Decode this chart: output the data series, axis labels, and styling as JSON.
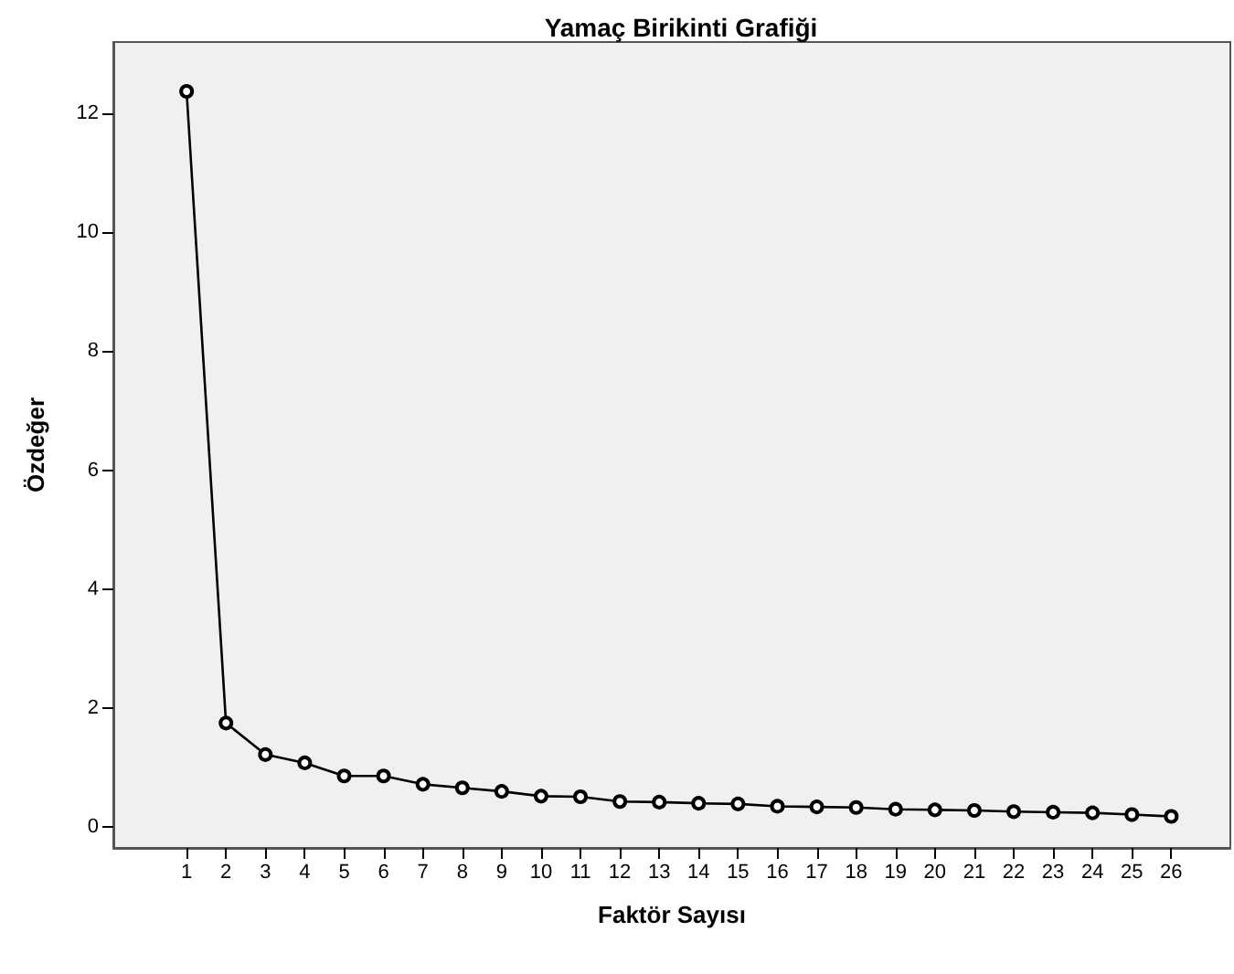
{
  "chart_data": {
    "type": "line",
    "title": "Yamaç Birikinti Grafiği",
    "xlabel": "Faktör Sayısı",
    "ylabel": "Özdeğer",
    "x": [
      1,
      2,
      3,
      4,
      5,
      6,
      7,
      8,
      9,
      10,
      11,
      12,
      13,
      14,
      15,
      16,
      17,
      18,
      19,
      20,
      21,
      22,
      23,
      24,
      25,
      26
    ],
    "series": [
      {
        "color": "#000000",
        "values": [
          12.37,
          1.75,
          1.22,
          1.08,
          0.86,
          0.86,
          0.72,
          0.66,
          0.6,
          0.52,
          0.51,
          0.43,
          0.42,
          0.4,
          0.39,
          0.35,
          0.34,
          0.33,
          0.3,
          0.29,
          0.28,
          0.26,
          0.25,
          0.24,
          0.21,
          0.18
        ]
      }
    ],
    "xlim": [
      -0.86,
      27.5
    ],
    "xticks": [
      1,
      2,
      3,
      4,
      5,
      6,
      7,
      8,
      9,
      10,
      11,
      12,
      13,
      14,
      15,
      16,
      17,
      18,
      19,
      20,
      21,
      22,
      23,
      24,
      25,
      26
    ],
    "ylim": [
      -0.35,
      13.2
    ],
    "yticks": [
      0,
      2,
      4,
      6,
      8,
      10,
      12
    ],
    "grid": false,
    "marker": "circle",
    "line_style": "solid"
  }
}
